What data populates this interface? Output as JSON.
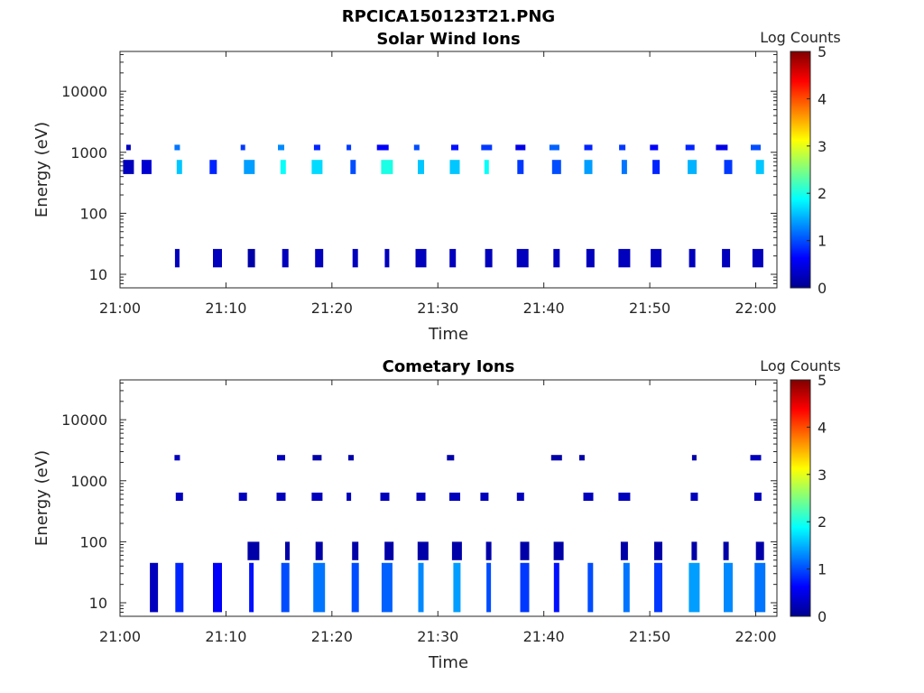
{
  "figure": {
    "title": "RPCICA150123T21.PNG"
  },
  "chart_data": [
    {
      "type": "heatmap",
      "title": "Solar Wind Ions",
      "xlabel": "Time",
      "ylabel": "Energy (eV)",
      "x_ticks": [
        "21:00",
        "21:10",
        "21:20",
        "21:30",
        "21:40",
        "21:50",
        "22:00"
      ],
      "xlim": [
        "21:00",
        "22:02"
      ],
      "y_scale": "log",
      "ylim": [
        6,
        45000
      ],
      "y_ticks": [
        10,
        100,
        1000,
        10000
      ],
      "y_tick_labels": [
        "10",
        "100",
        "1000",
        "10000"
      ],
      "colorbar": {
        "label": "Log Counts",
        "range": [
          0,
          5
        ],
        "ticks": [
          "0",
          "1",
          "2",
          "3",
          "4",
          "5"
        ],
        "colormap": "jet"
      },
      "bands": [
        {
          "name": "1200 eV",
          "energy_range": [
            1080,
            1330
          ],
          "times": [
            "21:00:48",
            "21:05:24",
            "21:11:36",
            "21:15:12",
            "21:18:36",
            "21:21:36",
            "21:24:48",
            "21:28:00",
            "21:31:36",
            "21:34:36",
            "21:37:48",
            "21:41:00",
            "21:44:12",
            "21:47:24",
            "21:50:24",
            "21:53:48",
            "21:56:48",
            "22:00:00"
          ],
          "values": [
            0.3,
            1.2,
            0.9,
            1.3,
            0.8,
            0.9,
            0.6,
            1.0,
            0.7,
            0.9,
            0.5,
            1.1,
            0.8,
            0.9,
            0.6,
            0.8,
            0.5,
            1.0
          ]
        },
        {
          "name": "600 eV",
          "energy_range": [
            440,
            750
          ],
          "times": [
            "21:00:48",
            "21:02:30",
            "21:05:36",
            "21:08:48",
            "21:12:12",
            "21:15:24",
            "21:18:36",
            "21:22:00",
            "21:25:12",
            "21:28:24",
            "21:31:36",
            "21:34:36",
            "21:37:48",
            "21:41:12",
            "21:44:12",
            "21:47:36",
            "21:50:36",
            "21:54:00",
            "21:57:24",
            "22:00:24"
          ],
          "values": [
            0.3,
            0.4,
            1.6,
            0.8,
            1.4,
            1.9,
            1.7,
            1.0,
            2.0,
            1.6,
            1.6,
            1.9,
            0.9,
            1.0,
            1.4,
            1.2,
            0.8,
            1.5,
            0.9,
            1.6
          ]
        },
        {
          "name": "20 eV",
          "energy_range": [
            13,
            26
          ],
          "times": [
            "21:05:24",
            "21:09:12",
            "21:12:24",
            "21:15:36",
            "21:18:48",
            "21:22:12",
            "21:25:12",
            "21:28:24",
            "21:31:24",
            "21:34:48",
            "21:38:00",
            "21:41:12",
            "21:44:24",
            "21:47:36",
            "21:50:36",
            "21:54:00",
            "21:57:12",
            "22:00:12"
          ],
          "values": [
            0.3,
            0.3,
            0.2,
            0.3,
            0.3,
            0.3,
            0.3,
            0.3,
            0.3,
            0.3,
            0.3,
            0.3,
            0.3,
            0.3,
            0.3,
            0.3,
            0.3,
            0.3
          ]
        }
      ]
    },
    {
      "type": "heatmap",
      "title": "Cometary Ions",
      "xlabel": "Time",
      "ylabel": "Energy (eV)",
      "x_ticks": [
        "21:00",
        "21:10",
        "21:20",
        "21:30",
        "21:40",
        "21:50",
        "22:00"
      ],
      "xlim": [
        "21:00",
        "22:02"
      ],
      "y_scale": "log",
      "ylim": [
        6,
        45000
      ],
      "y_ticks": [
        10,
        100,
        1000,
        10000
      ],
      "y_tick_labels": [
        "10",
        "100",
        "1000",
        "10000"
      ],
      "colorbar": {
        "label": "Log Counts",
        "range": [
          0,
          5
        ],
        "ticks": [
          "0",
          "1",
          "2",
          "3",
          "4",
          "5"
        ],
        "colormap": "jet"
      },
      "bands": [
        {
          "name": "2400 eV",
          "energy_range": [
            2150,
            2650
          ],
          "times": [
            "21:05:24",
            "21:15:12",
            "21:18:36",
            "21:21:48",
            "21:31:12",
            "21:41:12",
            "21:43:36",
            "21:54:12",
            "22:00:00"
          ],
          "values": [
            0.3,
            0.3,
            0.2,
            0.2,
            0.2,
            0.2,
            0.2,
            0.2,
            0.3
          ]
        },
        {
          "name": "550 eV",
          "energy_range": [
            470,
            640
          ],
          "times": [
            "21:05:36",
            "21:11:36",
            "21:15:12",
            "21:18:36",
            "21:21:36",
            "21:25:00",
            "21:28:24",
            "21:31:36",
            "21:34:24",
            "21:37:48",
            "21:44:12",
            "21:47:36",
            "21:54:12",
            "22:00:12"
          ],
          "values": [
            0.3,
            0.3,
            0.3,
            0.3,
            0.3,
            0.3,
            0.3,
            0.3,
            0.3,
            0.3,
            0.3,
            0.3,
            0.3,
            0.3
          ]
        },
        {
          "name": "8-45 eV",
          "energy_range": [
            7,
            45
          ],
          "times": [
            "21:03:12",
            "21:05:36",
            "21:09:12",
            "21:12:24",
            "21:15:36",
            "21:18:48",
            "21:22:12",
            "21:25:12",
            "21:28:24",
            "21:31:48",
            "21:34:48",
            "21:38:12",
            "21:41:12",
            "21:44:24",
            "21:47:48",
            "21:50:48",
            "21:54:12",
            "21:57:24",
            "22:00:24"
          ],
          "values": [
            0.3,
            0.8,
            0.6,
            0.7,
            1.0,
            1.2,
            1.0,
            1.1,
            1.3,
            1.4,
            1.0,
            0.9,
            0.7,
            1.0,
            1.2,
            0.9,
            1.4,
            1.3,
            1.2
          ]
        },
        {
          "name": "60-100 eV",
          "energy_range": [
            50,
            100
          ],
          "times": [
            "21:12:36",
            "21:15:48",
            "21:18:48",
            "21:22:12",
            "21:25:24",
            "21:28:36",
            "21:31:48",
            "21:34:48",
            "21:38:12",
            "21:41:24",
            "21:47:36",
            "21:50:48",
            "21:54:12",
            "21:57:12",
            "22:00:24"
          ],
          "values": [
            0.2,
            0.2,
            0.2,
            0.2,
            0.2,
            0.2,
            0.2,
            0.2,
            0.2,
            0.2,
            0.2,
            0.2,
            0.2,
            0.2,
            0.2
          ]
        }
      ]
    }
  ]
}
